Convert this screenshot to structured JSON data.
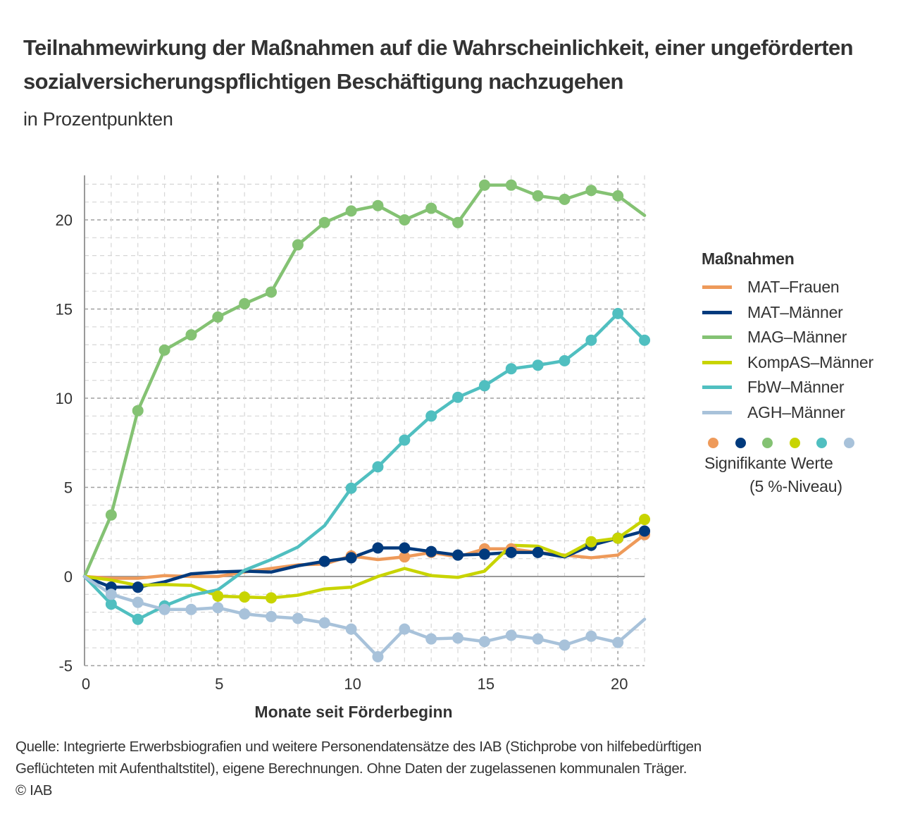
{
  "header": {
    "title": "Teilnahmewirkung der Maßnahmen auf die Wahrscheinlichkeit, einer ungeförderten sozialversicherungspflichtigen Beschäftigung nachzugehen",
    "subtitle": "in Prozentpunkten"
  },
  "legend": {
    "title": "Maßnahmen",
    "significance_label_line1": "Signifikante Werte",
    "significance_label_line2": "(5 %-Niveau)"
  },
  "source": {
    "line1": "Quelle: Integrierte Erwerbsbiografien und weitere Personendatensätze des IAB (Stichprobe von hilfebedürftigen",
    "line2": "Geflüchteten mit Aufenthaltstitel), eigene Berechnungen. Ohne Daten der zugelassenen kommunalen Träger.",
    "line3": "© IAB"
  },
  "chart_data": {
    "type": "line",
    "title": "Teilnahmewirkung der Maßnahmen auf die Wahrscheinlichkeit, einer ungeförderten sozialversicherungspflichtigen Beschäftigung nachzugehen",
    "subtitle": "in Prozentpunkten",
    "xlabel": "Monate seit Förderbeginn",
    "ylabel": "",
    "xlim": [
      0,
      21
    ],
    "ylim": [
      -5,
      22.5
    ],
    "xticks": [
      0,
      5,
      10,
      15,
      20
    ],
    "xtick_labels": [
      "0",
      "5",
      "10",
      "15",
      "20"
    ],
    "yticks": [
      -5,
      0,
      5,
      10,
      15,
      20
    ],
    "ytick_labels": [
      "-5",
      "0",
      "5",
      "10",
      "15",
      "20"
    ],
    "grid": true,
    "legend_position": "right",
    "x": [
      0,
      1,
      2,
      3,
      4,
      5,
      6,
      7,
      8,
      9,
      10,
      11,
      12,
      13,
      14,
      15,
      16,
      17,
      18,
      19,
      20,
      21
    ],
    "series": [
      {
        "name": "MAT–Frauen",
        "color": "#EE9A5A",
        "values": [
          0,
          -0.1,
          -0.1,
          0.05,
          0,
          0,
          0.25,
          0.45,
          0.65,
          0.7,
          1.15,
          0.95,
          1.1,
          1.35,
          1.1,
          1.55,
          1.55,
          1.35,
          1.2,
          1.05,
          1.2,
          2.35
        ],
        "significant": [
          10,
          12,
          13,
          15,
          16,
          21
        ]
      },
      {
        "name": "MAT–Männer",
        "color": "#003A7D",
        "values": [
          0,
          -0.6,
          -0.6,
          -0.3,
          0.15,
          0.25,
          0.3,
          0.25,
          0.6,
          0.85,
          1.05,
          1.6,
          1.6,
          1.4,
          1.2,
          1.25,
          1.35,
          1.35,
          1.1,
          1.75,
          2.15,
          2.55
        ],
        "significant": [
          1,
          2,
          9,
          10,
          11,
          12,
          13,
          14,
          15,
          16,
          17,
          19,
          20,
          21
        ]
      },
      {
        "name": "MAG–Männer",
        "color": "#84C273",
        "values": [
          0,
          3.45,
          9.3,
          12.7,
          13.55,
          14.55,
          15.3,
          15.95,
          18.6,
          19.85,
          20.5,
          20.8,
          20.0,
          20.65,
          19.85,
          21.95,
          21.95,
          21.35,
          21.15,
          21.65,
          21.35,
          20.25
        ],
        "significant": [
          1,
          2,
          3,
          4,
          5,
          6,
          7,
          8,
          9,
          10,
          11,
          12,
          13,
          14,
          15,
          16,
          17,
          18,
          19,
          20
        ]
      },
      {
        "name": "KompAS–Männer",
        "color": "#C8D400",
        "values": [
          0,
          -0.2,
          -0.5,
          -0.45,
          -0.5,
          -1.1,
          -1.15,
          -1.2,
          -1.05,
          -0.7,
          -0.6,
          0.0,
          0.45,
          0.05,
          -0.05,
          0.3,
          1.75,
          1.7,
          1.15,
          1.95,
          2.15,
          3.2
        ],
        "significant": [
          5,
          6,
          7,
          19,
          20,
          21
        ]
      },
      {
        "name": "FbW–Männer",
        "color": "#50BFC0",
        "values": [
          0,
          -1.55,
          -2.4,
          -1.65,
          -1.05,
          -0.75,
          0.35,
          0.95,
          1.65,
          2.85,
          4.95,
          6.15,
          7.65,
          9.0,
          10.05,
          10.7,
          11.65,
          11.85,
          12.1,
          13.25,
          14.75,
          13.25
        ],
        "significant": [
          1,
          2,
          3,
          10,
          11,
          12,
          13,
          14,
          15,
          16,
          17,
          18,
          19,
          20,
          21
        ]
      },
      {
        "name": "AGH–Männer",
        "color": "#A8C2DA",
        "values": [
          0,
          -1.0,
          -1.45,
          -1.85,
          -1.85,
          -1.75,
          -2.1,
          -2.25,
          -2.35,
          -2.6,
          -2.95,
          -4.5,
          -2.95,
          -3.5,
          -3.45,
          -3.65,
          -3.3,
          -3.5,
          -3.85,
          -3.35,
          -3.7,
          -2.4
        ],
        "significant": [
          1,
          2,
          3,
          4,
          5,
          6,
          7,
          8,
          9,
          10,
          11,
          12,
          13,
          14,
          15,
          16,
          17,
          18,
          19,
          20
        ]
      }
    ]
  }
}
